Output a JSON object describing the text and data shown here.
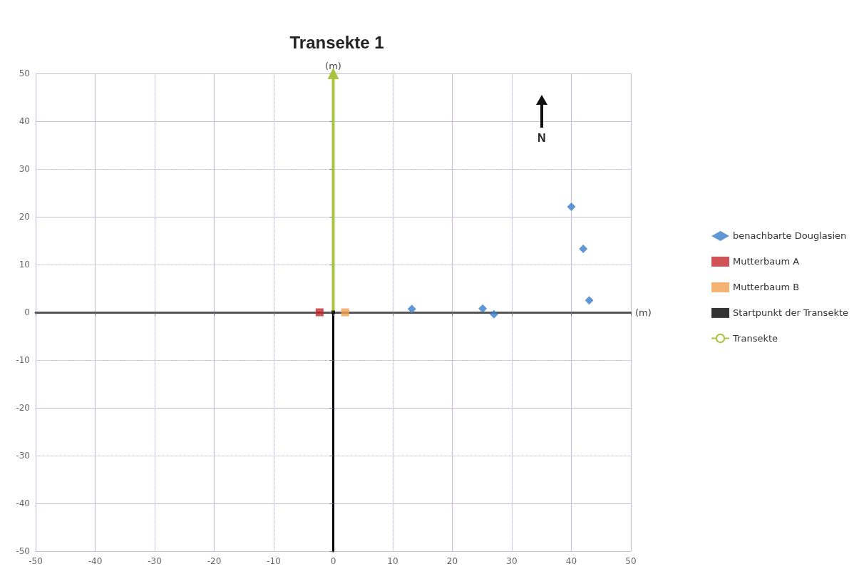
{
  "chart_data": {
    "type": "scatter",
    "title": "Transekte 1",
    "xlabel": "(m)",
    "ylabel": "(m)",
    "xlim": [
      -50,
      50
    ],
    "xticks": [
      -50,
      -40,
      -30,
      -20,
      -10,
      0,
      10,
      20,
      30,
      40,
      50
    ],
    "ylim": [
      -50,
      50
    ],
    "yticks": [
      -50,
      -40,
      -30,
      -20,
      -10,
      0,
      10,
      20,
      30,
      40,
      50
    ],
    "grid": true,
    "legend": "right",
    "annotations": [
      "N"
    ],
    "series": [
      {
        "name": "benachbarte Douglasien",
        "color": "#3a7dc9",
        "marker": "diamond",
        "x": [
          13.2,
          25.1,
          27,
          40,
          42,
          43
        ],
        "values": [
          0.7,
          0.8,
          -0.4,
          22.1,
          13.3,
          2.5
        ]
      },
      {
        "name": "Mutterbaum A",
        "color": "#c0282d",
        "marker": "square",
        "x": [
          -2.3
        ],
        "values": [
          0
        ]
      },
      {
        "name": "Mutterbaum B",
        "color": "#f0a050",
        "marker": "square",
        "x": [
          2
        ],
        "values": [
          0
        ]
      },
      {
        "name": "Startpunkt der Transekte",
        "color": "#000000",
        "marker": "square",
        "x": [
          0
        ],
        "values": [
          0
        ]
      },
      {
        "name": "Transekte",
        "type": "line",
        "color": "#a9c23f",
        "x": [
          0,
          0
        ],
        "values": [
          0,
          50
        ]
      }
    ]
  }
}
